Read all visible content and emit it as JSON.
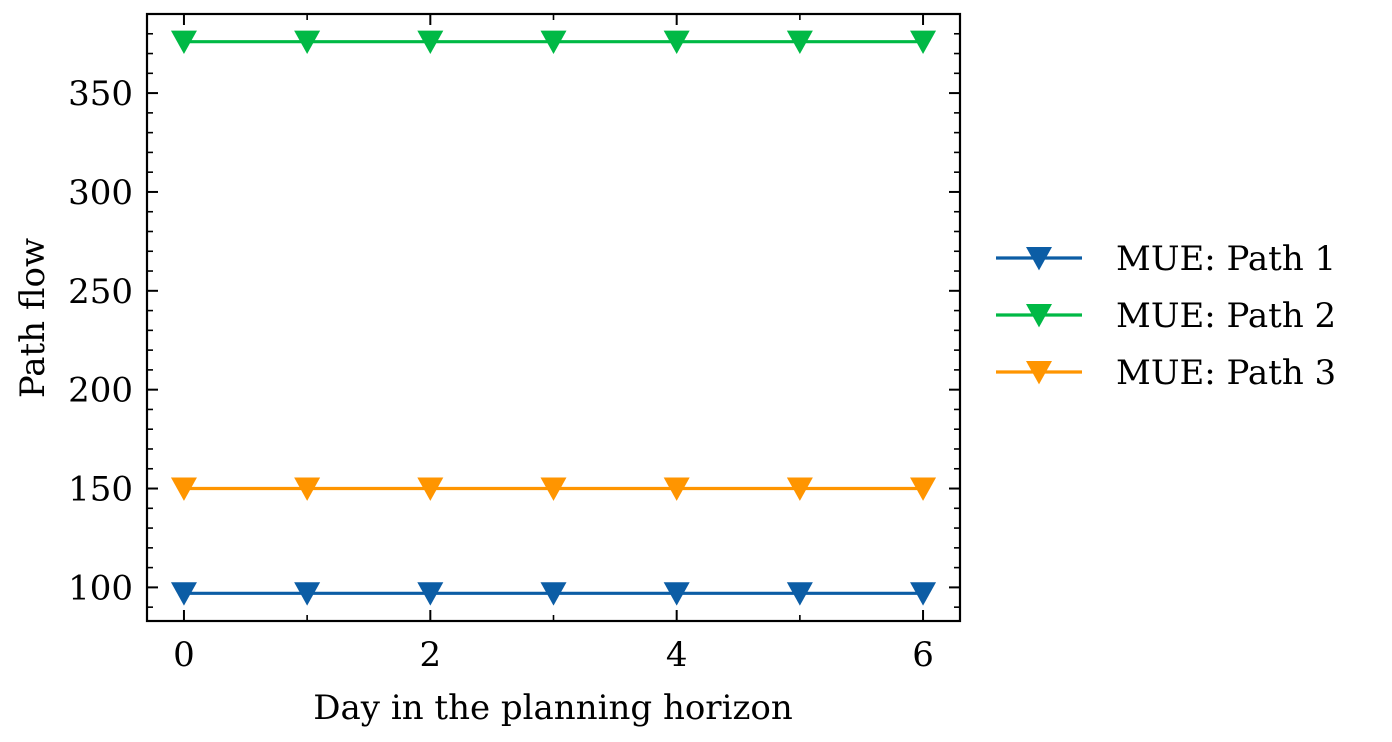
{
  "chart_data": {
    "type": "line",
    "xlabel": "Day in the planning horizon",
    "ylabel": "Path flow",
    "xlim": [
      -0.3,
      6.3
    ],
    "ylim": [
      83,
      390
    ],
    "x_ticks": [
      0,
      2,
      4,
      6
    ],
    "x_tick_labels": [
      "0",
      "2",
      "4",
      "6"
    ],
    "x_minor_ticks": [
      1,
      3,
      5
    ],
    "y_ticks": [
      100,
      150,
      200,
      250,
      300,
      350
    ],
    "y_tick_labels": [
      "100",
      "150",
      "200",
      "250",
      "300",
      "350"
    ],
    "y_minor_step": 10,
    "marker": "triangle-down",
    "grid": false,
    "legend_position": "outside-right",
    "x": [
      0,
      1,
      2,
      3,
      4,
      5,
      6
    ],
    "series": [
      {
        "name": "MUE: Path 1",
        "color": "#0C5DA5",
        "values": [
          97,
          97,
          97,
          97,
          97,
          97,
          97
        ]
      },
      {
        "name": "MUE: Path 2",
        "color": "#00B945",
        "values": [
          376,
          376,
          376,
          376,
          376,
          376,
          376
        ]
      },
      {
        "name": "MUE: Path 3",
        "color": "#FF9500",
        "values": [
          150,
          150,
          150,
          150,
          150,
          150,
          150
        ]
      }
    ]
  }
}
